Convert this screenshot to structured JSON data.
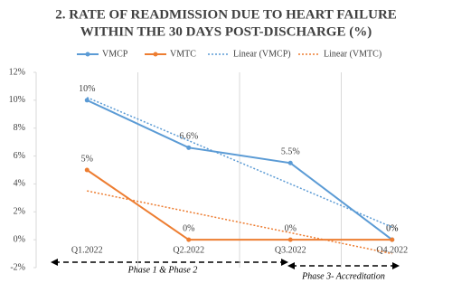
{
  "chart_data": {
    "type": "line",
    "title": [
      "2. RATE OF READMISSION DUE TO HEART FAILURE",
      "WITHIN THE 30 DAYS POST-DISCHARGE (%)"
    ],
    "categories": [
      "Q1.2022",
      "Q2.2022",
      "Q3.2022",
      "Q4.2022"
    ],
    "series": [
      {
        "name": "VMCP",
        "color": "#5b9bd5",
        "values": [
          10,
          6.6,
          5.5,
          0
        ],
        "value_labels": [
          "10%",
          "6.6%",
          "5.5%",
          "0%"
        ]
      },
      {
        "name": "VMTC",
        "color": "#ed7d31",
        "values": [
          5,
          0,
          0,
          0
        ],
        "value_labels": [
          "5%",
          "0%",
          "0%",
          "0%"
        ]
      },
      {
        "name": "Linear (VMCP)",
        "color": "#5b9bd5",
        "dashed": true,
        "values": [
          10.2,
          7.1,
          4.0,
          0.9
        ]
      },
      {
        "name": "Linear (VMTC)",
        "color": "#ed7d31",
        "dashed": true,
        "values": [
          3.5,
          2.0,
          0.5,
          -1.0
        ]
      }
    ],
    "ylim": [
      -2,
      12
    ],
    "yticks": [
      {
        "value": -2,
        "label": "-2%"
      },
      {
        "value": 0,
        "label": "0%"
      },
      {
        "value": 2,
        "label": "2%"
      },
      {
        "value": 4,
        "label": "4%"
      },
      {
        "value": 6,
        "label": "6%"
      },
      {
        "value": 8,
        "label": "8%"
      },
      {
        "value": 10,
        "label": "10%"
      },
      {
        "value": 12,
        "label": "12%"
      }
    ],
    "legend": "top",
    "annotations": [
      "Phase 1 & Phase 2",
      "Phase 3- Accreditation"
    ]
  }
}
